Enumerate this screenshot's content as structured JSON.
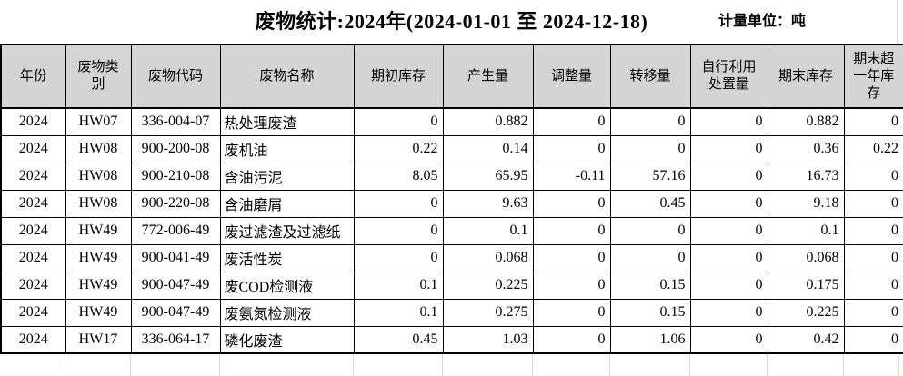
{
  "title": "废物统计:2024年(2024-01-01 至 2024-12-18)",
  "unit_label": "计量单位：吨",
  "colors": {
    "header_background": "#d4d4d4",
    "table_border": "#000000",
    "spreadsheet_gridline": "#d9d9d9",
    "text": "#000000",
    "page_background": "#ffffff"
  },
  "table": {
    "columns": [
      {
        "key": "year",
        "label": "年份"
      },
      {
        "key": "waste-category",
        "label": "废物类别"
      },
      {
        "key": "waste-code",
        "label": "废物代码"
      },
      {
        "key": "waste-name",
        "label": "废物名称"
      },
      {
        "key": "opening-stock",
        "label": "期初库存"
      },
      {
        "key": "generated-amount",
        "label": "产生量"
      },
      {
        "key": "adjusted-amount",
        "label": "调整量"
      },
      {
        "key": "transferred-amount",
        "label": "转移量"
      },
      {
        "key": "self-disposal-amount",
        "label": "自行利用处置量"
      },
      {
        "key": "closing-stock",
        "label": "期末库存"
      },
      {
        "key": "over-one-year-stock",
        "label": "期末超一年库存"
      }
    ],
    "rows": [
      [
        "2024",
        "HW07",
        "336-004-07",
        "热处理废渣",
        "0",
        "0.882",
        "0",
        "0",
        "0",
        "0.882",
        "0"
      ],
      [
        "2024",
        "HW08",
        "900-200-08",
        "废机油",
        "0.22",
        "0.14",
        "0",
        "0",
        "0",
        "0.36",
        "0.22"
      ],
      [
        "2024",
        "HW08",
        "900-210-08",
        "含油污泥",
        "8.05",
        "65.95",
        "-0.11",
        "57.16",
        "0",
        "16.73",
        "0"
      ],
      [
        "2024",
        "HW08",
        "900-220-08",
        "含油磨屑",
        "0",
        "9.63",
        "0",
        "0.45",
        "0",
        "9.18",
        "0"
      ],
      [
        "2024",
        "HW49",
        "772-006-49",
        "废过滤渣及过滤纸",
        "0",
        "0.1",
        "0",
        "0",
        "0",
        "0.1",
        "0"
      ],
      [
        "2024",
        "HW49",
        "900-041-49",
        "废活性炭",
        "0",
        "0.068",
        "0",
        "0",
        "0",
        "0.068",
        "0"
      ],
      [
        "2024",
        "HW49",
        "900-047-49",
        "废COD检测液",
        "0.1",
        "0.225",
        "0",
        "0.15",
        "0",
        "0.175",
        "0"
      ],
      [
        "2024",
        "HW49",
        "900-047-49",
        "废氨氮检测液",
        "0.1",
        "0.275",
        "0",
        "0.15",
        "0",
        "0.225",
        "0"
      ],
      [
        "2024",
        "HW17",
        "336-064-17",
        "磷化废渣",
        "0.45",
        "1.03",
        "0",
        "1.06",
        "0",
        "0.42",
        "0"
      ]
    ]
  }
}
